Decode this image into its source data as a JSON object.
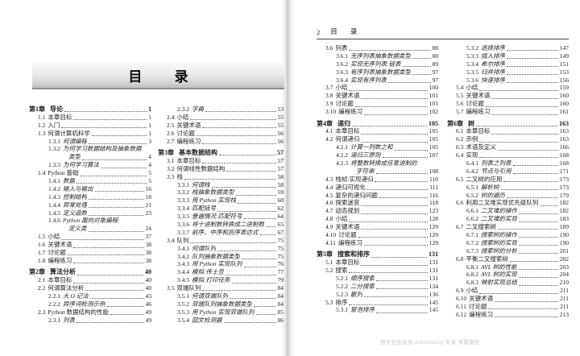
{
  "left_page": {
    "banner_title": "目  录",
    "col1": [
      {
        "lvl": "ch",
        "num": "第1章",
        "title": "导论",
        "page": "1"
      },
      {
        "lvl": "s1",
        "num": "1.1",
        "title": "本章目标",
        "page": "1"
      },
      {
        "lvl": "s1",
        "num": "1.2",
        "title": "入门",
        "page": "1"
      },
      {
        "lvl": "s1",
        "num": "1.3",
        "title": "何谓计算机科学",
        "page": "1"
      },
      {
        "lvl": "s2",
        "num": "1.3.1",
        "title": "何谓编程",
        "page": "3"
      },
      {
        "lvl": "s2",
        "num": "1.3.2",
        "title": "为何学习数据结构及抽象数据",
        "page": null
      },
      {
        "lvl": "cont",
        "num": "",
        "title": "类型",
        "page": "4"
      },
      {
        "lvl": "s2",
        "num": "1.3.3",
        "title": "为何学习算法",
        "page": "4"
      },
      {
        "lvl": "s1",
        "num": "1.4",
        "title": "Python 基础",
        "page": "5"
      },
      {
        "lvl": "s2",
        "num": "1.4.1",
        "title": "数据",
        "page": "5"
      },
      {
        "lvl": "s2",
        "num": "1.4.2",
        "title": "输入与输出",
        "page": "16"
      },
      {
        "lvl": "s2",
        "num": "1.4.3",
        "title": "控制结构",
        "page": "18"
      },
      {
        "lvl": "s2",
        "num": "1.4.4",
        "title": "异常处理",
        "page": "21"
      },
      {
        "lvl": "s2",
        "num": "1.4.5",
        "title": "定义函数",
        "page": "23"
      },
      {
        "lvl": "s2",
        "num": "1.4.6",
        "title": "Python 面向对象编程:",
        "page": null
      },
      {
        "lvl": "cont",
        "num": "",
        "title": "定义类",
        "page": "24"
      },
      {
        "lvl": "s1",
        "num": "1.5",
        "title": "小结",
        "page": "37"
      },
      {
        "lvl": "s1",
        "num": "1.6",
        "title": "关键术语",
        "page": "38"
      },
      {
        "lvl": "s1",
        "num": "1.7",
        "title": "讨论题",
        "page": "38"
      },
      {
        "lvl": "s1",
        "num": "1.8",
        "title": "编程练习",
        "page": "38"
      },
      {
        "lvl": "ch",
        "num": "第2章",
        "title": "算法分析",
        "page": "40"
      },
      {
        "lvl": "s1",
        "num": "2.1",
        "title": "本章目标",
        "page": "40"
      },
      {
        "lvl": "s1",
        "num": "2.2",
        "title": "何谓算法分析",
        "page": "40"
      },
      {
        "lvl": "s2",
        "num": "2.2.1",
        "title": "大 O 记法",
        "page": "43"
      },
      {
        "lvl": "s2",
        "num": "2.2.2",
        "title": "异序词检测示例",
        "page": "46"
      },
      {
        "lvl": "s1",
        "num": "2.3",
        "title": "Python 数据结构的性能",
        "page": "49"
      },
      {
        "lvl": "s2",
        "num": "2.3.1",
        "title": "列表",
        "page": "49"
      }
    ],
    "col2": [
      {
        "lvl": "s2",
        "num": "2.3.2",
        "title": "字典",
        "page": "53"
      },
      {
        "lvl": "s1",
        "num": "2.4",
        "title": "小结",
        "page": "55"
      },
      {
        "lvl": "s1",
        "num": "2.5",
        "title": "关键术语",
        "page": "55"
      },
      {
        "lvl": "s1",
        "num": "2.6",
        "title": "讨论题",
        "page": "56"
      },
      {
        "lvl": "s1",
        "num": "2.7",
        "title": "编程练习",
        "page": "56"
      },
      {
        "lvl": "ch",
        "num": "第3章",
        "title": "基本数据结构",
        "page": "57"
      },
      {
        "lvl": "s1",
        "num": "3.1",
        "title": "本章目标",
        "page": "57"
      },
      {
        "lvl": "s1",
        "num": "3.2",
        "title": "何谓线性数据结构",
        "page": "57"
      },
      {
        "lvl": "s1",
        "num": "3.3",
        "title": "栈",
        "page": "58"
      },
      {
        "lvl": "s2",
        "num": "3.3.1",
        "title": "何谓栈",
        "page": "58"
      },
      {
        "lvl": "s2",
        "num": "3.3.2",
        "title": "栈抽象数据类型",
        "page": "59"
      },
      {
        "lvl": "s2",
        "num": "3.3.3",
        "title": "用 Python 实现栈",
        "page": "60"
      },
      {
        "lvl": "s2",
        "num": "3.3.4",
        "title": "匹配括号",
        "page": "62"
      },
      {
        "lvl": "s2",
        "num": "3.3.5",
        "title": "普遍情况:匹配符号",
        "page": "64"
      },
      {
        "lvl": "s2",
        "num": "3.3.6",
        "title": "将十进制数转换成二进制数",
        "page": "65"
      },
      {
        "lvl": "s2",
        "num": "3.3.7",
        "title": "前序、中序和后序表达式",
        "page": "67"
      },
      {
        "lvl": "s1",
        "num": "3.4",
        "title": "队列",
        "page": "75"
      },
      {
        "lvl": "s2",
        "num": "3.4.1",
        "title": "何谓队列",
        "page": "75"
      },
      {
        "lvl": "s2",
        "num": "3.4.2",
        "title": "队列抽象数据类型",
        "page": "75"
      },
      {
        "lvl": "s2",
        "num": "3.4.3",
        "title": "用 Python 实现队列",
        "page": "76"
      },
      {
        "lvl": "s2",
        "num": "3.4.4",
        "title": "模拟:传土豆",
        "page": "77"
      },
      {
        "lvl": "s2",
        "num": "3.4.5",
        "title": "模拟:打印任务",
        "page": "79"
      },
      {
        "lvl": "s1",
        "num": "3.5",
        "title": "双端队列",
        "page": "84"
      },
      {
        "lvl": "s2",
        "num": "3.5.1",
        "title": "何谓双端队列",
        "page": "84"
      },
      {
        "lvl": "s2",
        "num": "3.5.2",
        "title": "双端队列抽象数据类型",
        "page": "84"
      },
      {
        "lvl": "s2",
        "num": "3.5.3",
        "title": "用 Python 实现双端队列",
        "page": "85"
      },
      {
        "lvl": "s2",
        "num": "3.5.4",
        "title": "回文检测器",
        "page": "86"
      }
    ]
  },
  "right_page": {
    "page_number": "2",
    "header_title": "目  录",
    "watermark": "图灵社区会员 Aidenlazz() 专享 尊重版权",
    "col1": [
      {
        "lvl": "s1",
        "num": "3.6",
        "title": "列表",
        "page": "88"
      },
      {
        "lvl": "s2",
        "num": "3.6.1",
        "title": "无序列表抽象数据类型",
        "page": "88"
      },
      {
        "lvl": "s2",
        "num": "3.6.2",
        "title": "实现无序列表:链表",
        "page": "89"
      },
      {
        "lvl": "s2",
        "num": "3.6.3",
        "title": "有序列表抽象数据类型",
        "page": "97"
      },
      {
        "lvl": "s2",
        "num": "3.6.4",
        "title": "实现有序列表",
        "page": "97"
      },
      {
        "lvl": "s1",
        "num": "3.7",
        "title": "小结",
        "page": "100"
      },
      {
        "lvl": "s1",
        "num": "3.8",
        "title": "关键术语",
        "page": "101"
      },
      {
        "lvl": "s1",
        "num": "3.9",
        "title": "讨论题",
        "page": "101"
      },
      {
        "lvl": "s1",
        "num": "3.10",
        "title": "编程练习",
        "page": "102"
      },
      {
        "lvl": "ch",
        "num": "第4章",
        "title": "递归",
        "page": "105"
      },
      {
        "lvl": "s1",
        "num": "4.1",
        "title": "本章目标",
        "page": "105"
      },
      {
        "lvl": "s1",
        "num": "4.2",
        "title": "何谓递归",
        "page": "105"
      },
      {
        "lvl": "s2",
        "num": "4.2.1",
        "title": "计算一列数之和",
        "page": "105"
      },
      {
        "lvl": "s2",
        "num": "4.2.2",
        "title": "递归三原则",
        "page": "107"
      },
      {
        "lvl": "s2",
        "num": "4.2.3",
        "title": "将整数转换成任意进制的",
        "page": null
      },
      {
        "lvl": "cont",
        "num": "",
        "title": "字符串",
        "page": "108"
      },
      {
        "lvl": "s1",
        "num": "4.3",
        "title": "栈帧:实现递归",
        "page": "110"
      },
      {
        "lvl": "s1",
        "num": "4.4",
        "title": "递归可视化",
        "page": "111"
      },
      {
        "lvl": "s1",
        "num": "4.5",
        "title": "复杂的递归问题",
        "page": "116"
      },
      {
        "lvl": "s1",
        "num": "4.6",
        "title": "探索迷宫",
        "page": "118"
      },
      {
        "lvl": "s1",
        "num": "4.7",
        "title": "动态规划",
        "page": "123"
      },
      {
        "lvl": "s1",
        "num": "4.8",
        "title": "小结",
        "page": "128"
      },
      {
        "lvl": "s1",
        "num": "4.9",
        "title": "关键术语",
        "page": "129"
      },
      {
        "lvl": "s1",
        "num": "4.10",
        "title": "讨论题",
        "page": "129"
      },
      {
        "lvl": "s1",
        "num": "4.11",
        "title": "编程练习",
        "page": "129"
      },
      {
        "lvl": "ch",
        "num": "第5章",
        "title": "搜索和排序",
        "page": "131"
      },
      {
        "lvl": "s1",
        "num": "5.1",
        "title": "本章目标",
        "page": "131"
      },
      {
        "lvl": "s1",
        "num": "5.2",
        "title": "搜索",
        "page": "131"
      },
      {
        "lvl": "s2",
        "num": "5.2.1",
        "title": "顺序搜索",
        "page": "131"
      },
      {
        "lvl": "s2",
        "num": "5.2.2",
        "title": "二分搜索",
        "page": "134"
      },
      {
        "lvl": "s2",
        "num": "5.2.3",
        "title": "散列",
        "page": "136"
      },
      {
        "lvl": "s1",
        "num": "5.3",
        "title": "排序",
        "page": "145"
      },
      {
        "lvl": "s2",
        "num": "5.3.1",
        "title": "冒泡排序",
        "page": "145"
      }
    ],
    "col2": [
      {
        "lvl": "s2",
        "num": "5.3.2",
        "title": "选择排序",
        "page": "147"
      },
      {
        "lvl": "s2",
        "num": "5.3.3",
        "title": "插入排序",
        "page": "149"
      },
      {
        "lvl": "s2",
        "num": "5.3.4",
        "title": "希尔排序",
        "page": "151"
      },
      {
        "lvl": "s2",
        "num": "5.3.5",
        "title": "归并排序",
        "page": "153"
      },
      {
        "lvl": "s2",
        "num": "5.3.6",
        "title": "快速排序",
        "page": "156"
      },
      {
        "lvl": "s1",
        "num": "5.4",
        "title": "小结",
        "page": "159"
      },
      {
        "lvl": "s1",
        "num": "5.5",
        "title": "关键术语",
        "page": "160"
      },
      {
        "lvl": "s1",
        "num": "5.6",
        "title": "讨论题",
        "page": "160"
      },
      {
        "lvl": "s1",
        "num": "5.7",
        "title": "编程练习",
        "page": "161"
      },
      {
        "lvl": "ch",
        "num": "第6章",
        "title": "树",
        "page": "163"
      },
      {
        "lvl": "s1",
        "num": "6.1",
        "title": "本章目标",
        "page": "163"
      },
      {
        "lvl": "s1",
        "num": "6.2",
        "title": "示例",
        "page": "163"
      },
      {
        "lvl": "s1",
        "num": "6.3",
        "title": "术语及定义",
        "page": "166"
      },
      {
        "lvl": "s1",
        "num": "6.4",
        "title": "实现",
        "page": "168"
      },
      {
        "lvl": "s2",
        "num": "6.4.1",
        "title": "列表之列表",
        "page": "168"
      },
      {
        "lvl": "s2",
        "num": "6.4.2",
        "title": "节点与引用",
        "page": "171"
      },
      {
        "lvl": "s1",
        "num": "6.5",
        "title": "二叉树的应用",
        "page": "173"
      },
      {
        "lvl": "s2",
        "num": "6.5.1",
        "title": "解析树",
        "page": "173"
      },
      {
        "lvl": "s2",
        "num": "6.5.2",
        "title": "树的遍历",
        "page": "179"
      },
      {
        "lvl": "s1",
        "num": "6.6",
        "title": "利用二叉堆实现优先级队列",
        "page": "182"
      },
      {
        "lvl": "s2",
        "num": "6.6.1",
        "title": "二叉堆的操作",
        "page": "182"
      },
      {
        "lvl": "s2",
        "num": "6.6.2",
        "title": "二叉堆的实现",
        "page": "183"
      },
      {
        "lvl": "s1",
        "num": "6.7",
        "title": "二叉搜索树",
        "page": "189"
      },
      {
        "lvl": "s2",
        "num": "6.7.1",
        "title": "搜索树的操作",
        "page": "190"
      },
      {
        "lvl": "s2",
        "num": "6.7.2",
        "title": "搜索树的实现",
        "page": "190"
      },
      {
        "lvl": "s2",
        "num": "6.7.3",
        "title": "搜索树的分析",
        "page": "201"
      },
      {
        "lvl": "s1",
        "num": "6.8",
        "title": "平衡二叉搜索树",
        "page": "202"
      },
      {
        "lvl": "s2",
        "num": "6.8.1",
        "title": "AVL 树的性能",
        "page": "203"
      },
      {
        "lvl": "s2",
        "num": "6.8.2",
        "title": "AVL 树的实现",
        "page": "204"
      },
      {
        "lvl": "s2",
        "num": "6.8.3",
        "title": "映射实现总结",
        "page": "210"
      },
      {
        "lvl": "s1",
        "num": "6.9",
        "title": "小结",
        "page": "211"
      },
      {
        "lvl": "s1",
        "num": "6.10",
        "title": "关键术语",
        "page": "211"
      },
      {
        "lvl": "s1",
        "num": "6.11",
        "title": "讨论题",
        "page": "211"
      },
      {
        "lvl": "s1",
        "num": "6.12",
        "title": "编程练习",
        "page": "213"
      }
    ]
  }
}
